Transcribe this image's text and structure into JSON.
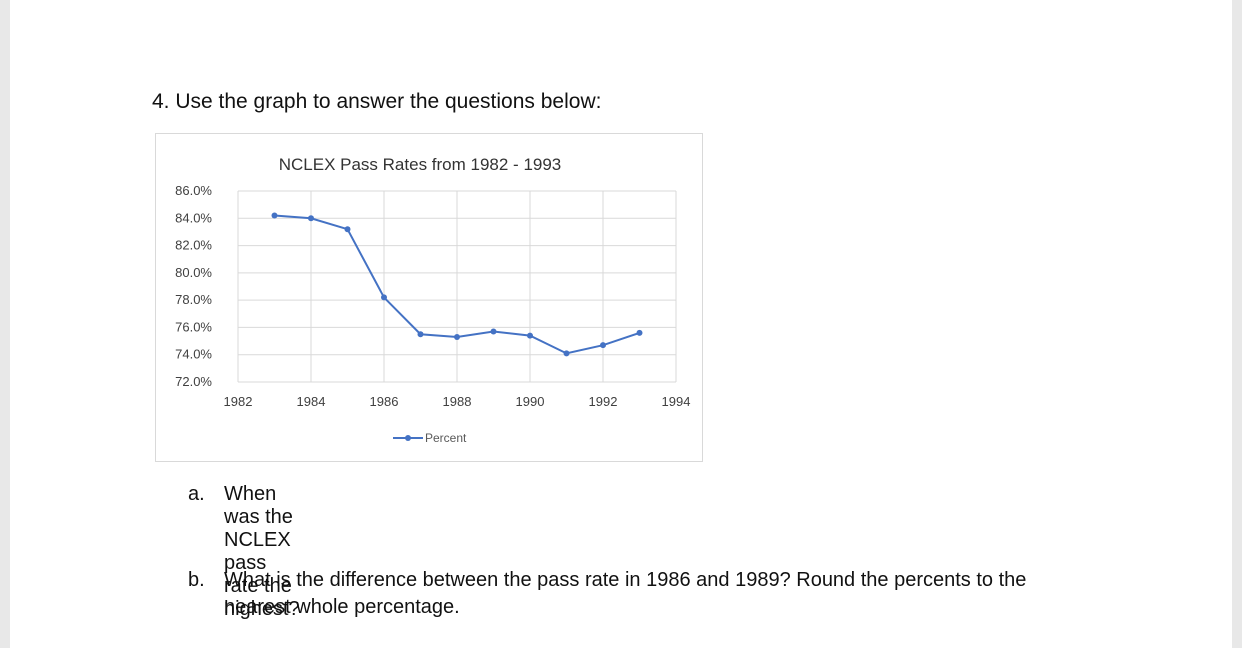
{
  "question": {
    "title": "4. Use the graph to answer the questions below:",
    "a": {
      "letter": "a.",
      "text": "When was the NCLEX pass rate the highest?"
    },
    "b": {
      "letter": "b.",
      "text": "What is the difference between the pass rate in 1986 and 1989? Round the percents to the nearest whole percentage."
    }
  },
  "chart_data": {
    "type": "line",
    "title": "NCLEX Pass Rates from 1982 - 1993",
    "xlabel": "",
    "ylabel": "",
    "x": [
      1983,
      1984,
      1985,
      1986,
      1987,
      1988,
      1989,
      1990,
      1991,
      1992,
      1993
    ],
    "series": [
      {
        "name": "Percent",
        "values": [
          84.2,
          84.0,
          83.2,
          78.2,
          75.5,
          75.3,
          75.7,
          75.4,
          74.1,
          74.7,
          75.6
        ],
        "color": "#4472c4"
      }
    ],
    "xlim": [
      1982,
      1994
    ],
    "ylim": [
      72,
      86
    ],
    "x_ticks": [
      "1982",
      "1984",
      "1986",
      "1988",
      "1990",
      "1992",
      "1994"
    ],
    "x_tick_values": [
      1982,
      1984,
      1986,
      1988,
      1990,
      1992,
      1994
    ],
    "y_ticks": [
      "72.0%",
      "74.0%",
      "76.0%",
      "78.0%",
      "80.0%",
      "82.0%",
      "84.0%",
      "86.0%"
    ],
    "y_tick_values": [
      72,
      74,
      76,
      78,
      80,
      82,
      84,
      86
    ],
    "grid": true,
    "legend_position": "bottom"
  }
}
